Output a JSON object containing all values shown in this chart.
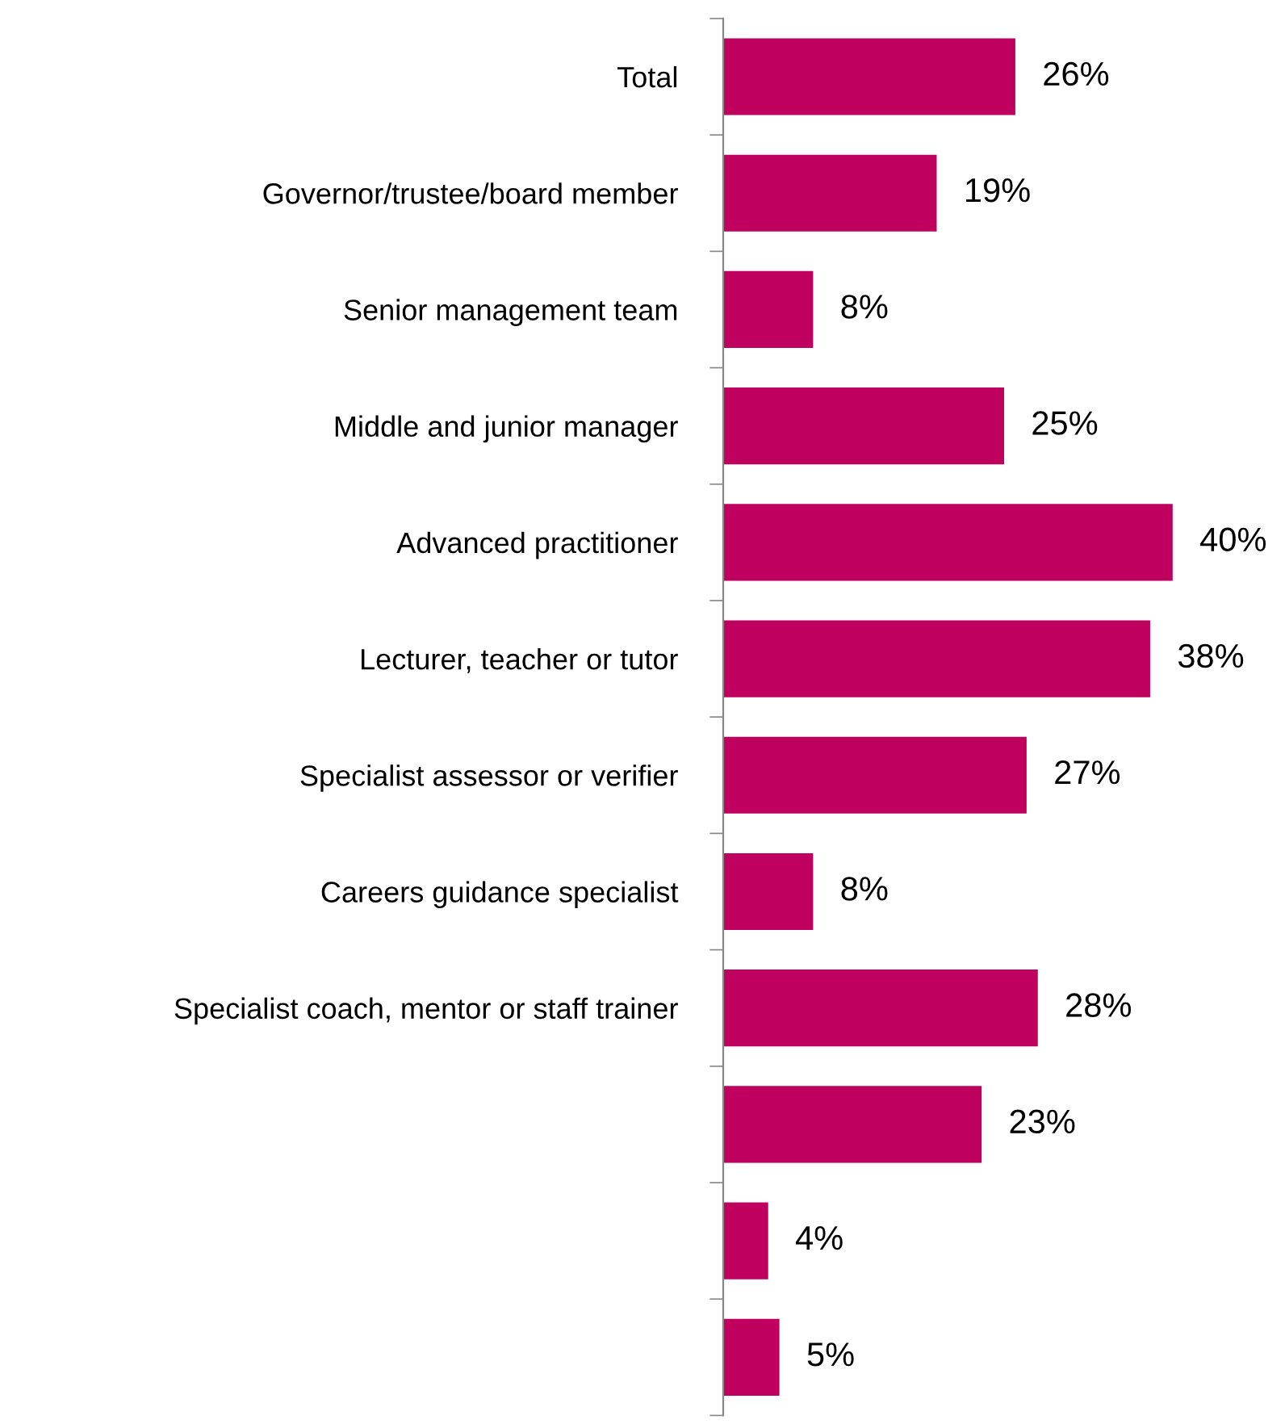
{
  "chart_data": {
    "type": "bar",
    "orientation": "horizontal",
    "color": "#c0005f",
    "categories": [
      "Total",
      "Governor/trustee/board member",
      "Senior management team",
      "Middle and junior manager",
      "Advanced practitioner",
      "Lecturer, teacher or tutor",
      "Specialist assessor or verifier",
      "Careers guidance specialist",
      "Specialist coach, mentor or staff trainer",
      null,
      null,
      null
    ],
    "values": [
      26,
      19,
      8,
      25,
      40,
      38,
      27,
      8,
      28,
      23,
      4,
      5
    ],
    "value_labels": [
      "26%",
      "19%",
      "8%",
      "25%",
      "40%",
      "38%",
      "27%",
      "8%",
      "28%",
      "23%",
      "4%",
      "5%"
    ],
    "grid": false,
    "legend": false
  }
}
